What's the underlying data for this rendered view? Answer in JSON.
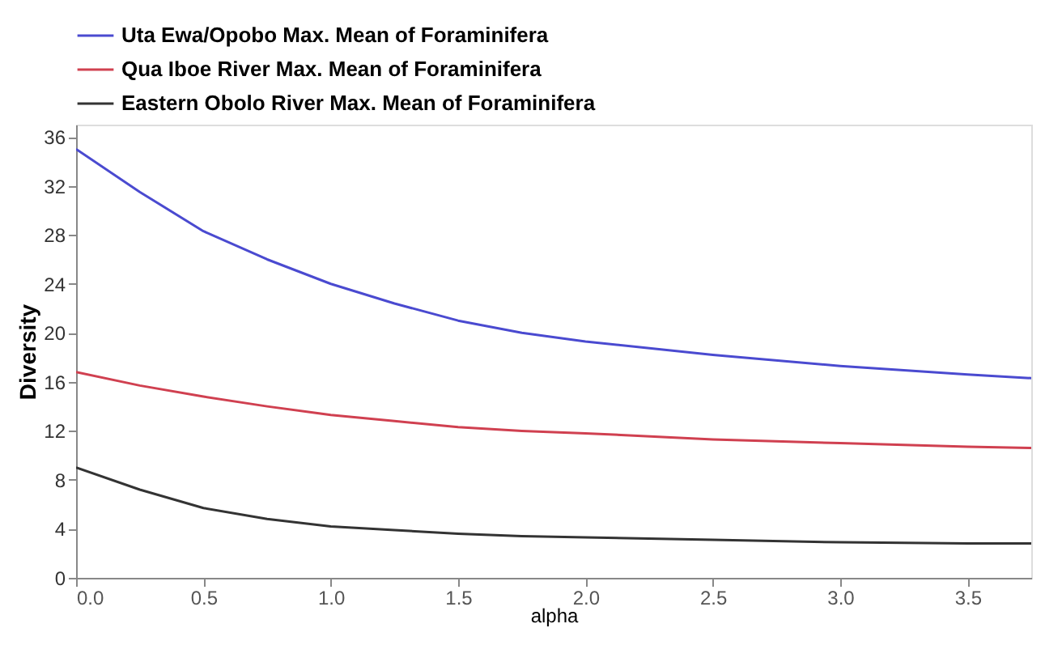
{
  "chart_data": {
    "type": "line",
    "xlabel": "alpha",
    "ylabel": "Diversity",
    "xlim": [
      0,
      3.75
    ],
    "xticks": [
      {
        "value": 0,
        "label": "0.0"
      },
      0.5,
      {
        "value": 1,
        "label": "1.0"
      },
      1.5,
      {
        "value": 2,
        "label": "2.0"
      },
      2.5,
      {
        "value": 3,
        "label": "3.0"
      },
      3.5
    ],
    "ylim": [
      0,
      37
    ],
    "yticks": [
      0,
      4,
      8,
      12,
      16,
      20,
      24,
      28,
      32,
      36
    ],
    "x": [
      0,
      0.25,
      0.5,
      0.75,
      1.0,
      1.25,
      1.5,
      1.75,
      2.0,
      2.5,
      3.0,
      3.5,
      3.75
    ],
    "series": [
      {
        "name": "Uta Ewa/Opobo Max. Mean of Foraminifera",
        "color": "#4a4ad0",
        "values": [
          35,
          31.5,
          28.3,
          26,
          24,
          22.4,
          21,
          20,
          19.3,
          18.2,
          17.3,
          16.6,
          16.3
        ]
      },
      {
        "name": "Qua Iboe River Max. Mean of Foraminifera",
        "color": "#d04050",
        "values": [
          16.8,
          15.7,
          14.8,
          14,
          13.3,
          12.8,
          12.3,
          12,
          11.8,
          11.3,
          11,
          10.7,
          10.6
        ]
      },
      {
        "name": "Eastern Obolo River Max. Mean of Foraminifera",
        "color": "#333333",
        "values": [
          9,
          7.2,
          5.7,
          4.8,
          4.2,
          3.9,
          3.6,
          3.4,
          3.3,
          3.1,
          2.9,
          2.8,
          2.8
        ]
      }
    ],
    "grid": false,
    "legend": "top left",
    "marker": "none",
    "line_style": "solid"
  }
}
